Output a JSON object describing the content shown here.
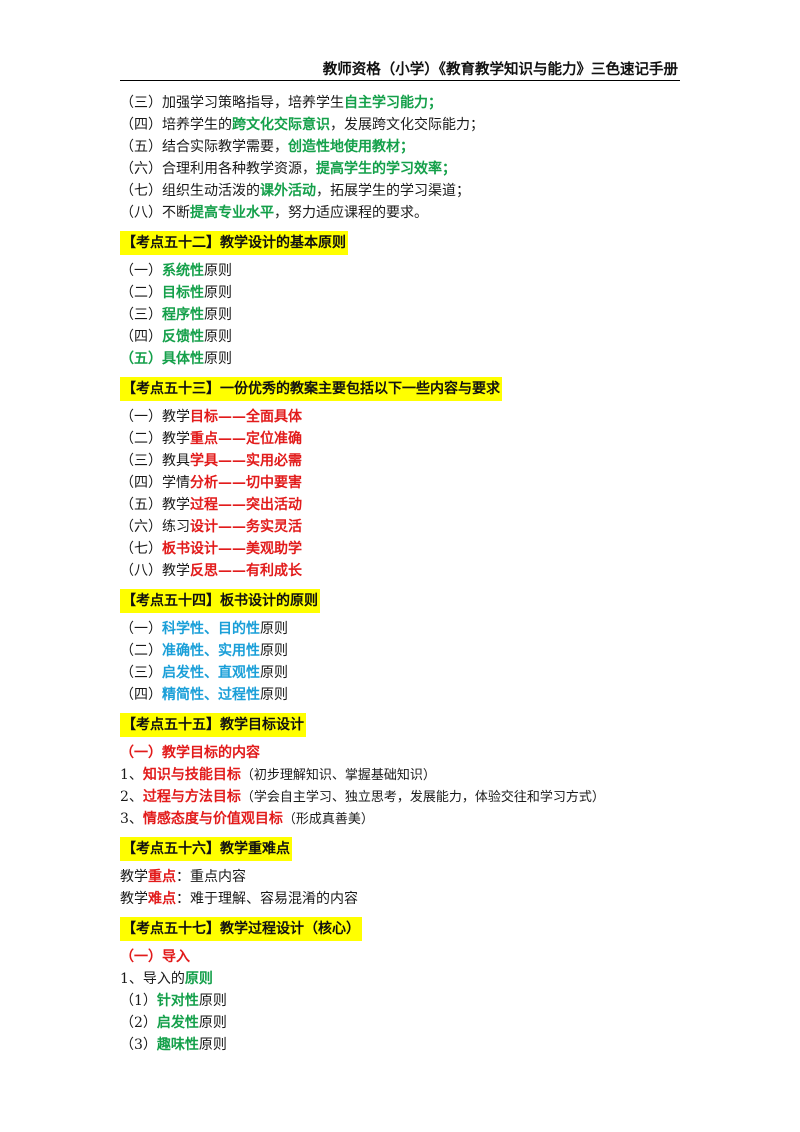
{
  "header": {
    "title": "教师资格（小学）《教育教学知识与能力》三色速记手册"
  },
  "colors": {
    "green": "#14a04a",
    "red": "#e21b1b",
    "blue": "#1a9fd8",
    "highlight": "#ffff00"
  },
  "intro_items": [
    {
      "prefix": "（三）加强学习策略指导，培养学生",
      "key": "自主学习能力；",
      "suffix": ""
    },
    {
      "prefix": "（四）培养学生的",
      "key": "跨文化交际意识",
      "suffix": "，发展跨文化交际能力；"
    },
    {
      "prefix": "（五）结合实际教学需要，",
      "key": "创造性地使用教材；",
      "suffix": ""
    },
    {
      "prefix": "（六）合理利用各种教学资源，",
      "key": "提高学生的学习效率；",
      "suffix": ""
    },
    {
      "prefix": "（七）组织生动活泼的",
      "key": "课外活动",
      "suffix": "，拓展学生的学习渠道；"
    },
    {
      "prefix": "（八）不断",
      "key": "提高专业水平",
      "suffix": "，努力适应课程的要求。"
    }
  ],
  "s52": {
    "heading": "【考点五十二】教学设计的基本原则",
    "items": [
      {
        "num": "（一）",
        "key": "系统性",
        "suffix": "原则"
      },
      {
        "num": "（二）",
        "key": "目标性",
        "suffix": "原则"
      },
      {
        "num": "（三）",
        "key": "程序性",
        "suffix": "原则"
      },
      {
        "num": "（四）",
        "key": "反馈性",
        "suffix": "原则"
      },
      {
        "num": "（五）",
        "key": "具体性",
        "suffix": "原则"
      }
    ]
  },
  "s53": {
    "heading": "【考点五十三】一份优秀的教案主要包括以下一些内容与要求",
    "items": [
      {
        "num": "（一）",
        "pre": "教学",
        "key": "目标——全面具体"
      },
      {
        "num": "（二）",
        "pre": "教学",
        "key": "重点——定位准确"
      },
      {
        "num": "（三）",
        "pre": "教具",
        "key": "学具——实用必需"
      },
      {
        "num": "（四）",
        "pre": "学情",
        "key": "分析——切中要害"
      },
      {
        "num": "（五）",
        "pre": "教学",
        "key": "过程——突出活动"
      },
      {
        "num": "（六）",
        "pre": "练习",
        "key": "设计——务实灵活"
      },
      {
        "num": "（七）",
        "pre": "",
        "key": "板书设计——美观助学"
      },
      {
        "num": "（八）",
        "pre": "教学",
        "key": "反思——有利成长"
      }
    ]
  },
  "s54": {
    "heading": "【考点五十四】板书设计的原则",
    "items": [
      {
        "num": "（一）",
        "key": "科学性、目的性",
        "suffix": "原则"
      },
      {
        "num": "（二）",
        "key": "准确性、实用性",
        "suffix": "原则"
      },
      {
        "num": "（三）",
        "key": "启发性、直观性",
        "suffix": "原则"
      },
      {
        "num": "（四）",
        "key": "精简性、过程性",
        "suffix": "原则"
      }
    ]
  },
  "s55": {
    "heading": "【考点五十五】教学目标设计",
    "subheading": "（一）教学目标的内容",
    "items": [
      {
        "num": "1、",
        "key": "知识与技能目标",
        "suffix": "（初步理解知识、掌握基础知识）"
      },
      {
        "num": "2、",
        "key": "过程与方法目标",
        "suffix": "（学会自主学习、独立思考，发展能力，体验交往和学习方式）"
      },
      {
        "num": "3、",
        "key": "情感态度与价值观目标",
        "suffix": "（形成真善美）"
      }
    ]
  },
  "s56": {
    "heading": "【考点五十六】教学重难点",
    "items": [
      {
        "pre": "教学",
        "key": "重点",
        "suffix": "：重点内容"
      },
      {
        "pre": "教学",
        "key": "难点",
        "suffix": "：难于理解、容易混淆的内容"
      }
    ]
  },
  "s57": {
    "heading": "【考点五十七】教学过程设计（核心）",
    "subheading": "（一）导入",
    "line1": {
      "pre": "1、导入的",
      "key": "原则"
    },
    "items": [
      {
        "num": "（1）",
        "key": "针对性",
        "suffix": "原则"
      },
      {
        "num": "（2）",
        "key": "启发性",
        "suffix": "原则"
      },
      {
        "num": "（3）",
        "key": "趣味性",
        "suffix": "原则"
      }
    ]
  }
}
